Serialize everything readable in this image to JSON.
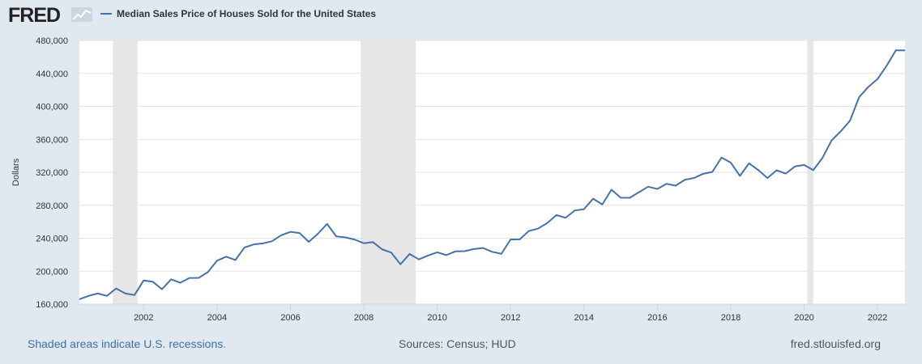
{
  "logo": {
    "text": "FRED"
  },
  "chart_data": {
    "type": "line",
    "title": "Median Sales Price of Houses Sold for the United States",
    "xlabel": "",
    "ylabel": "Dollars",
    "ylim": [
      160000,
      480000
    ],
    "yticks": [
      "160,000",
      "200,000",
      "240,000",
      "280,000",
      "320,000",
      "360,000",
      "400,000",
      "440,000",
      "480,000"
    ],
    "ytick_values": [
      160000,
      200000,
      240000,
      280000,
      320000,
      360000,
      400000,
      440000,
      480000
    ],
    "xticks": [
      "2002",
      "2004",
      "2006",
      "2008",
      "2010",
      "2012",
      "2014",
      "2016",
      "2018",
      "2020",
      "2022"
    ],
    "xlim": [
      "2000-04-01",
      "2022-10-01"
    ],
    "grid": true,
    "legend": "top-left",
    "series_color": "#4572a7",
    "recession_color": "#e6e6e6",
    "recessions": [
      [
        "2001-03-01",
        "2001-11-01"
      ],
      [
        "2007-12-01",
        "2009-06-01"
      ],
      [
        "2020-02-01",
        "2020-04-01"
      ]
    ],
    "series": [
      {
        "name": "Median Sales Price of Houses Sold for the United States",
        "start": "2000-04-01",
        "frequency": "quarterly",
        "values": [
          166000,
          170000,
          173000,
          170000,
          179000,
          173000,
          171000,
          188700,
          187200,
          178100,
          190100,
          186000,
          191800,
          191900,
          198800,
          212700,
          217600,
          213500,
          228800,
          232500,
          233700,
          236400,
          243600,
          247700,
          246300,
          235600,
          245400,
          257400,
          242200,
          241000,
          238400,
          233900,
          235300,
          226500,
          222500,
          208400,
          220900,
          214300,
          219000,
          222900,
          219500,
          224100,
          224300,
          226900,
          228100,
          223500,
          221100,
          238400,
          238700,
          248800,
          251700,
          258400,
          268100,
          264800,
          273600,
          275200,
          288000,
          281000,
          298900,
          289200,
          289100,
          295800,
          302500,
          299800,
          306000,
          303800,
          310900,
          313100,
          318200,
          320500,
          337900,
          331800,
          315600,
          330900,
          322800,
          313000,
          322500,
          318400,
          327100,
          329000,
          322600,
          337500,
          358700,
          369800,
          382600,
          411200,
          423600,
          433100,
          449300,
          468000,
          468000
        ]
      }
    ]
  },
  "footer": {
    "recession_note": "Shaded areas indicate U.S. recessions.",
    "sources": "Sources: Census; HUD",
    "site": "fred.stlouisfed.org"
  }
}
